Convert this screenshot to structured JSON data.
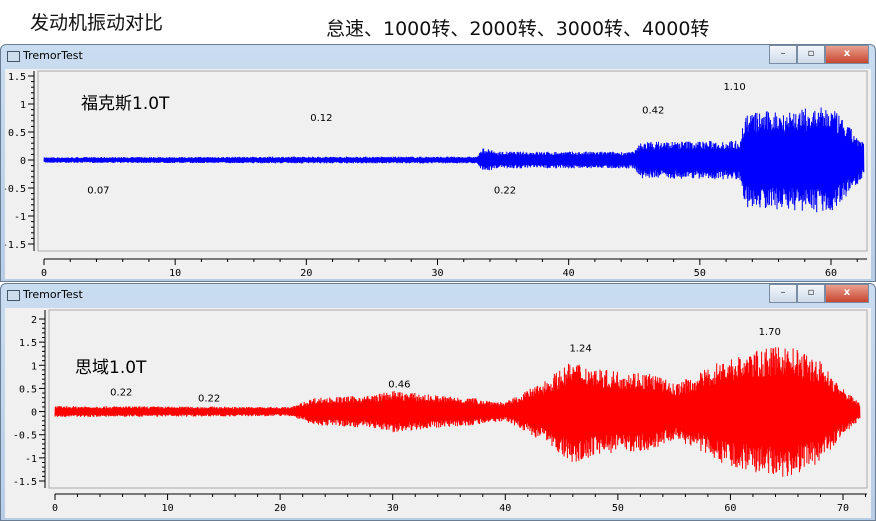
{
  "header": {
    "title": "发动机振动对比",
    "subtitle": "怠速、1000转、2000转、3000转、4000转"
  },
  "windows": [
    {
      "title": "TremorTest",
      "buttons": {
        "minimize": "–",
        "maximize": "▫",
        "close": "x"
      }
    },
    {
      "title": "TremorTest",
      "buttons": {
        "minimize": "–",
        "maximize": "▫",
        "close": "x"
      }
    }
  ],
  "chart_data": [
    {
      "type": "line",
      "label": "福克斯1.0T",
      "color": "#0000ff",
      "xlim": [
        0,
        62.5
      ],
      "ylim": [
        -1.6,
        1.6
      ],
      "xticks": [
        "0",
        "10",
        "20",
        "30",
        "40",
        "50",
        "60"
      ],
      "yticks": [
        "1.5",
        "1",
        "0.5",
        "0",
        "-0.5",
        "-1",
        "-1.5"
      ],
      "envelope": [
        [
          0,
          0.05
        ],
        [
          20,
          0.06
        ],
        [
          33,
          0.06
        ],
        [
          33.5,
          0.22
        ],
        [
          34.5,
          0.15
        ],
        [
          45,
          0.15
        ],
        [
          45.5,
          0.33
        ],
        [
          53,
          0.35
        ],
        [
          53.5,
          0.85
        ],
        [
          60,
          0.95
        ],
        [
          61,
          0.7
        ],
        [
          62.5,
          0.3
        ]
      ],
      "annotations": [
        {
          "text": "0.07",
          "x": 3.3,
          "y": -0.6
        },
        {
          "text": "0.12",
          "x": 20.3,
          "y": 0.7
        },
        {
          "text": "0.22",
          "x": 34.3,
          "y": -0.6
        },
        {
          "text": "0.42",
          "x": 45.6,
          "y": 0.83
        },
        {
          "text": "1.10",
          "x": 51.8,
          "y": 1.25
        }
      ]
    },
    {
      "type": "line",
      "label": "思域1.0T",
      "color": "#ff0000",
      "xlim": [
        0,
        72
      ],
      "ylim": [
        -1.6,
        2.05
      ],
      "xticks": [
        "0",
        "10",
        "20",
        "30",
        "40",
        "50",
        "60",
        "70"
      ],
      "yticks": [
        "2",
        "1.5",
        "1",
        "0.5",
        "0",
        "-0.5",
        "-1",
        "-1.5"
      ],
      "envelope": [
        [
          0,
          0.12
        ],
        [
          21,
          0.1
        ],
        [
          23,
          0.3
        ],
        [
          28,
          0.35
        ],
        [
          30,
          0.45
        ],
        [
          34,
          0.35
        ],
        [
          37,
          0.3
        ],
        [
          40,
          0.2
        ],
        [
          43,
          0.6
        ],
        [
          46,
          1.1
        ],
        [
          49,
          0.9
        ],
        [
          53,
          0.85
        ],
        [
          55,
          0.6
        ],
        [
          57,
          0.8
        ],
        [
          59,
          1.1
        ],
        [
          62,
          1.3
        ],
        [
          65,
          1.45
        ],
        [
          68,
          1.1
        ],
        [
          70,
          0.5
        ],
        [
          71.5,
          0.2
        ]
      ],
      "annotations": [
        {
          "text": "0.22",
          "x": 4.9,
          "y": 0.35
        },
        {
          "text": "0.22",
          "x": 12.7,
          "y": 0.22
        },
        {
          "text": "0.46",
          "x": 29.6,
          "y": 0.52
        },
        {
          "text": "1.24",
          "x": 45.7,
          "y": 1.3
        },
        {
          "text": "1.70",
          "x": 62.5,
          "y": 1.65
        }
      ]
    }
  ]
}
